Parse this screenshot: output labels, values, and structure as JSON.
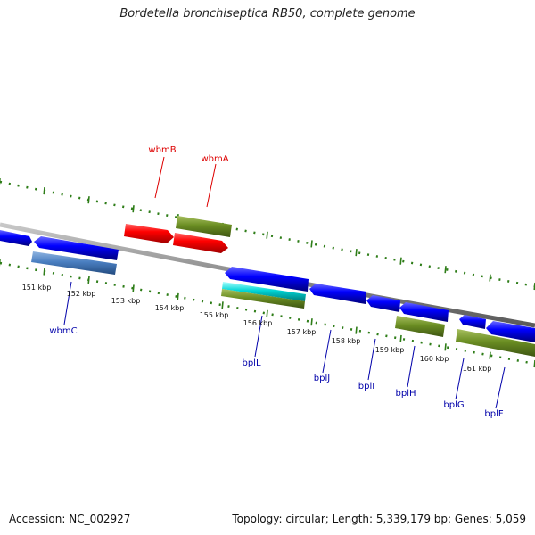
{
  "title": "Bordetella bronchiseptica RB50, complete genome",
  "footer": {
    "accession": "Accession: NC_002927",
    "summary": "Topology: circular; Length: 5,339,179 bp; Genes: 5,059"
  },
  "colors": {
    "backbone": "#8a8a8a",
    "tick": "#2e7d18",
    "gene_forward": "#0000ff",
    "gene_reverse": "#0000ff",
    "gene_red": "#ff0000",
    "olive": "#6b8e23",
    "steelblue": "#4a7fc1",
    "cyan": "#00d5d5",
    "label_red": "#dd0000",
    "label_blue": "#0000aa"
  },
  "scale_labels": [
    "151 kbp",
    "152 kbp",
    "153 kbp",
    "154 kbp",
    "155 kbp",
    "156 kbp",
    "157 kbp",
    "158 kbp",
    "159 kbp",
    "160 kbp",
    "161 kbp"
  ],
  "gene_labels": [
    {
      "text": "wbmB",
      "color": "red"
    },
    {
      "text": "wbmA",
      "color": "red"
    },
    {
      "text": "wbmC",
      "color": "blue"
    },
    {
      "text": "bplL",
      "color": "blue"
    },
    {
      "text": "bplJ",
      "color": "blue"
    },
    {
      "text": "bplI",
      "color": "blue"
    },
    {
      "text": "bplH",
      "color": "blue"
    },
    {
      "text": "bplG",
      "color": "blue"
    },
    {
      "text": "bplF",
      "color": "blue"
    }
  ]
}
